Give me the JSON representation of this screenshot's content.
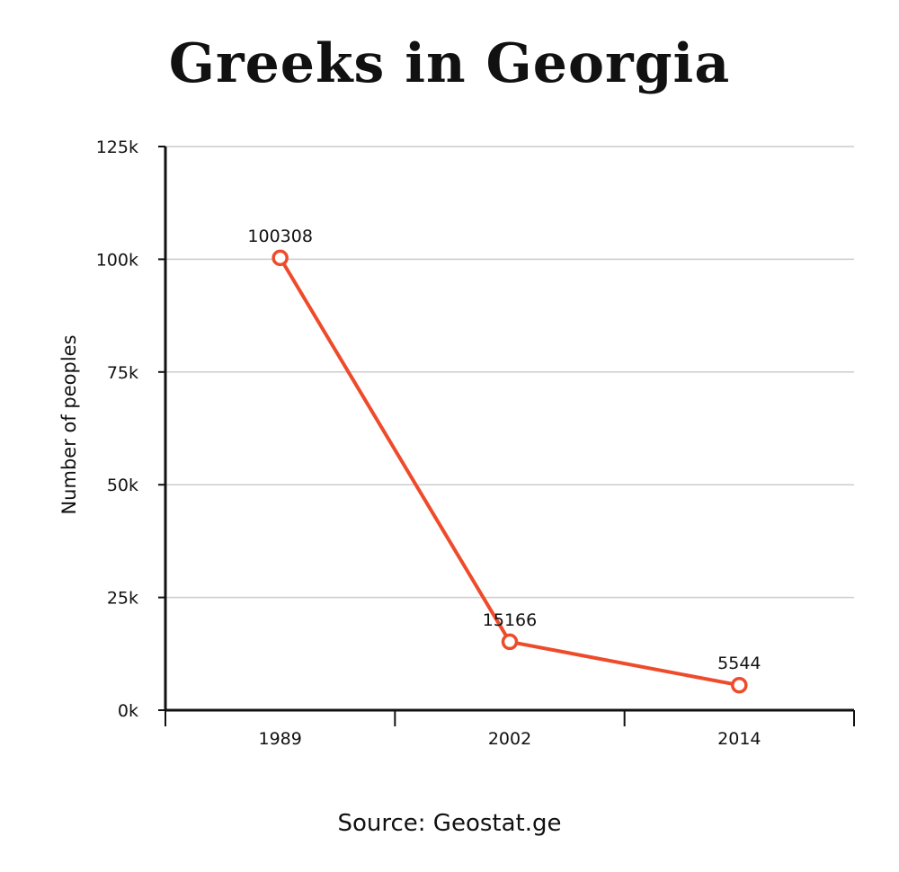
{
  "title": "Greeks in Georgia",
  "source": "Source: Geostat.ge",
  "colors": {
    "line": "#ee4b2b",
    "grid": "#cccccc",
    "axis": "#111111"
  },
  "chart_data": {
    "type": "line",
    "title": "Greeks in Georgia",
    "xlabel": "",
    "ylabel": "Number of peoples",
    "categories": [
      "1989",
      "2002",
      "2014"
    ],
    "series": [
      {
        "values": [
          100308,
          15166,
          5544
        ],
        "data_labels": [
          "100308",
          "15166",
          "5544"
        ]
      }
    ],
    "ylim": [
      0,
      125000
    ],
    "yticks": [
      0,
      25000,
      50000,
      75000,
      100000,
      125000
    ],
    "ytick_labels": [
      "0k",
      "25k",
      "50k",
      "75k",
      "100k",
      "125k"
    ],
    "grid": true,
    "legend": "none"
  }
}
